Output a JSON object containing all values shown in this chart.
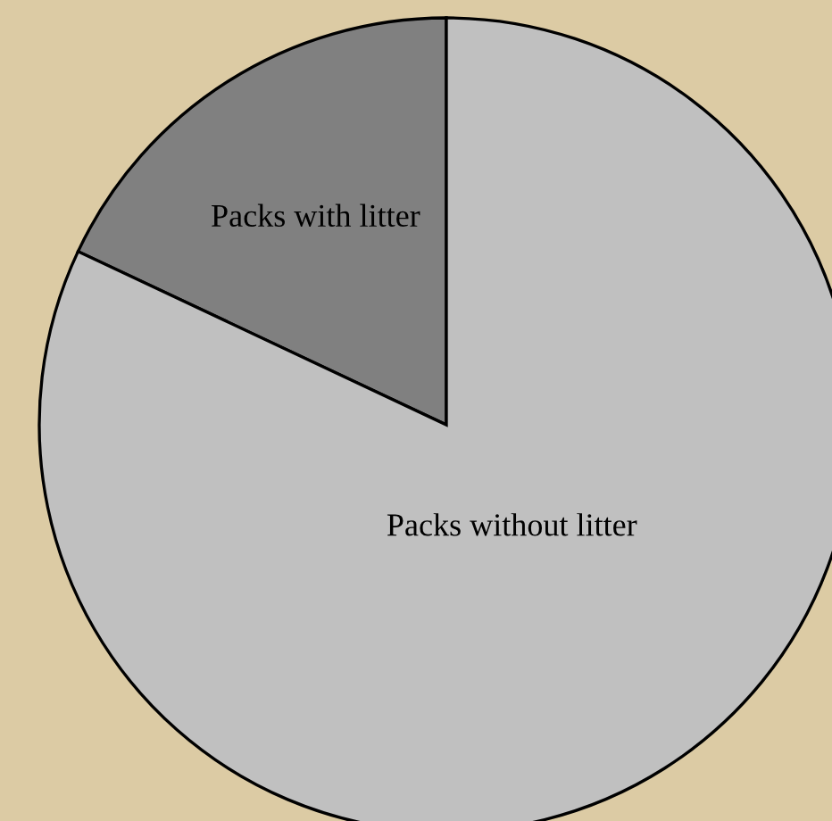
{
  "chart_data": {
    "type": "pie",
    "categories": [
      "Packs with litter",
      "Packs without litter"
    ],
    "values": [
      18,
      82
    ],
    "colors": [
      "#808080",
      "#c0c0c0"
    ]
  }
}
